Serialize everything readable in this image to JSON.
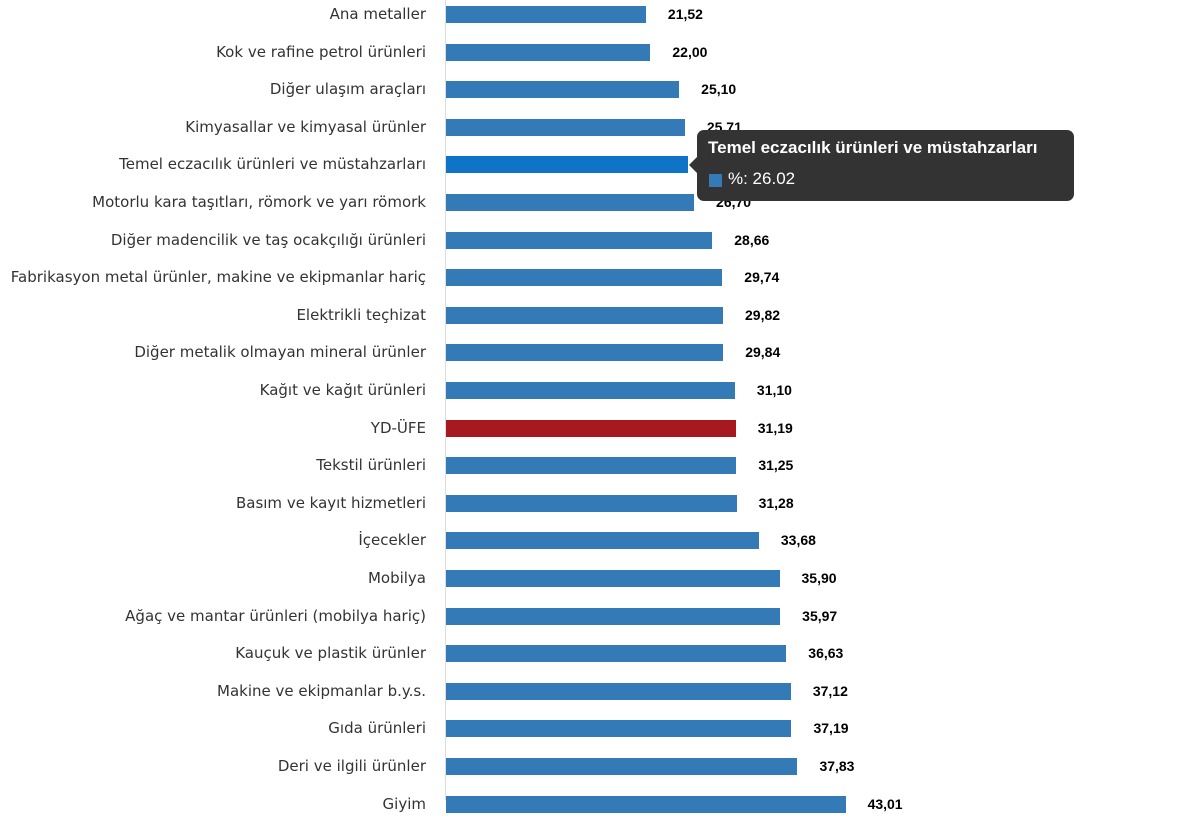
{
  "chart_data": {
    "type": "bar",
    "orientation": "horizontal",
    "categories": [
      "Ana metaller",
      "Kok ve rafine petrol ürünleri",
      "Diğer ulaşım araçları",
      "Kimyasallar ve kimyasal ürünler",
      "Temel eczacılık ürünleri ve müstahzarları",
      "Motorlu kara taşıtları, römork ve yarı römork",
      "Diğer madencilik ve taş ocakçılığı ürünleri",
      "Fabrikasyon metal ürünler, makine ve ekipmanlar hariç",
      "Elektrikli teçhizat",
      "Diğer metalik olmayan mineral ürünler",
      "Kağıt ve kağıt ürünleri",
      "YD-ÜFE",
      "Tekstil ürünleri",
      "Basım ve kayıt hizmetleri",
      "İçecekler",
      "Mobilya",
      "Ağaç ve mantar ürünleri (mobilya hariç)",
      "Kauçuk ve plastik ürünler",
      "Makine ve ekipmanlar b.y.s.",
      "Gıda ürünleri",
      "Deri ve ilgili ürünler",
      "Giyim"
    ],
    "values": [
      21.52,
      22.0,
      25.1,
      25.71,
      26.02,
      26.7,
      28.66,
      29.74,
      29.82,
      29.84,
      31.1,
      31.19,
      31.25,
      31.28,
      33.68,
      35.9,
      35.97,
      36.63,
      37.12,
      37.19,
      37.83,
      43.01
    ],
    "value_labels": [
      "21,52",
      "22,00",
      "25,10",
      "25,71",
      "26,02",
      "26,70",
      "28,66",
      "29,74",
      "29,82",
      "29,84",
      "31,10",
      "31,19",
      "31,25",
      "31,28",
      "33,68",
      "35,90",
      "35,97",
      "36,63",
      "37,12",
      "37,19",
      "37,83",
      "43,01"
    ],
    "colors": {
      "default": "#337ab7",
      "highlight": "#a8191f",
      "hover": "#0f74c6"
    },
    "highlight_category": "YD-ÜFE",
    "hover_category": "Temel eczacılık ürünleri ve müstahzarları"
  },
  "tooltip": {
    "title": "Temel eczacılık ürünleri ve müstahzarları",
    "value": "%: 26.02"
  }
}
